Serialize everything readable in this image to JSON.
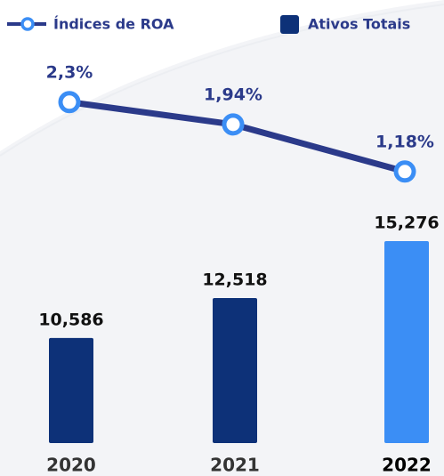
{
  "chart_data": {
    "type": "bar",
    "categories": [
      "2020",
      "2021",
      "2022"
    ],
    "series": [
      {
        "name": "Ativos Totais",
        "type": "bar",
        "color": "#0d3178",
        "colors": [
          "#0d3178",
          "#0d3178",
          "#3b8ef5"
        ],
        "values": [
          10586,
          12518,
          15276
        ],
        "value_labels": [
          "10,586",
          "12,518",
          "15,276"
        ]
      },
      {
        "name": "Índices de ROA",
        "type": "line",
        "axis": "y2",
        "color": "#2b3a8a",
        "marker_color": "#3b8ef5",
        "values": [
          2.3,
          1.94,
          1.18
        ],
        "value_labels": [
          "2,3%",
          "1,94%",
          "1,18%"
        ]
      }
    ],
    "ylim": [
      5500,
      17000
    ],
    "y2lim": [
      0,
      3
    ],
    "grid": false
  }
}
